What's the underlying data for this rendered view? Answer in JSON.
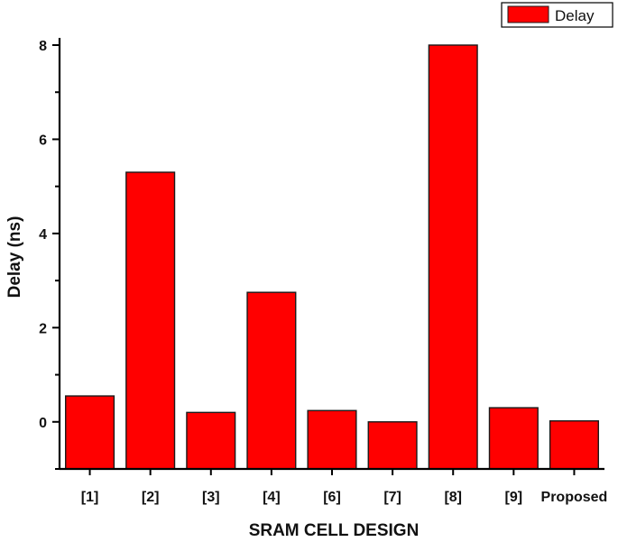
{
  "chart_data": {
    "type": "bar",
    "categories": [
      "[1]",
      "[2]",
      "[3]",
      "[4]",
      "[6]",
      "[7]",
      "[8]",
      "[9]",
      "Proposed"
    ],
    "values": [
      0.55,
      5.3,
      0.2,
      2.75,
      0.24,
      0.0,
      8.0,
      0.3,
      0.02
    ],
    "series": [
      {
        "name": "Delay",
        "values": [
          0.55,
          5.3,
          0.2,
          2.75,
          0.24,
          0.0,
          8.0,
          0.3,
          0.02
        ]
      }
    ],
    "title": "",
    "xlabel": "SRAM CELL DESIGN",
    "ylabel": "Delay (ns)",
    "ylim": [
      -1,
      8
    ],
    "yticks": [
      "0",
      "2",
      "4",
      "6",
      "8"
    ],
    "grid": false,
    "legend": "top-right",
    "bar_color": "#ff0000",
    "bar_edge_color": "#1a1a1a"
  }
}
